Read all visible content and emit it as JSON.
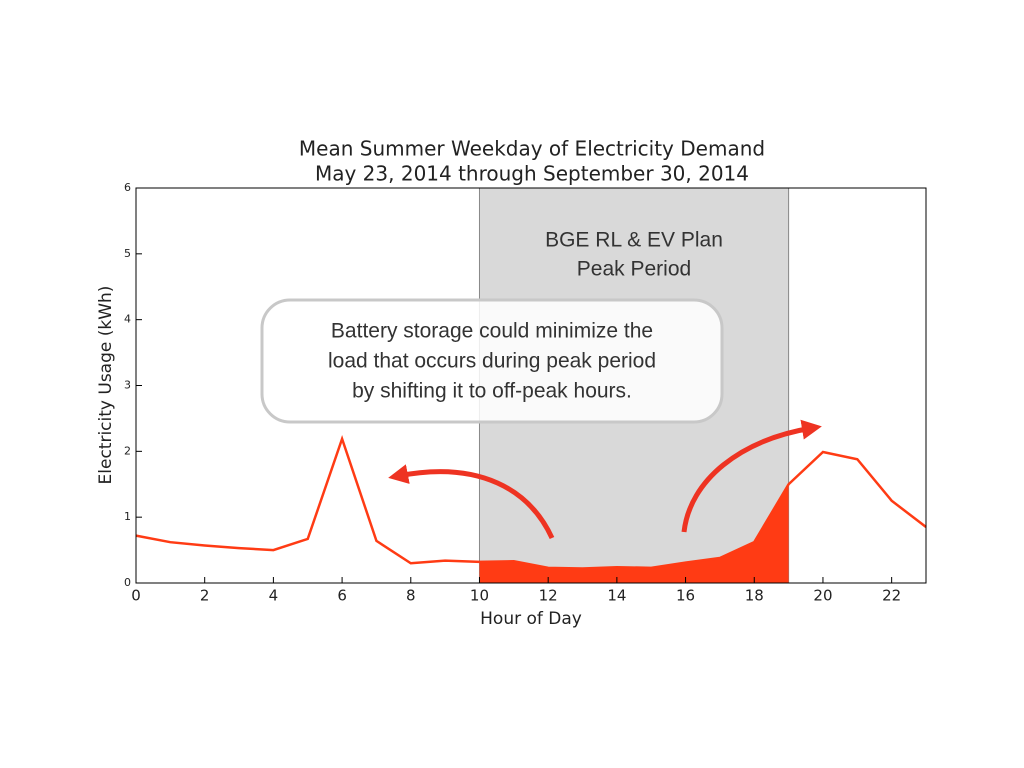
{
  "chart_data": {
    "type": "line",
    "title": [
      "Mean Summer Weekday of Electricity Demand",
      "May 23, 2014 through September 30, 2014"
    ],
    "x_label": "Hour of Day",
    "y_label": "Electricity Usage (kWh)",
    "x": [
      0,
      1,
      2,
      3,
      4,
      5,
      6,
      7,
      8,
      9,
      10,
      11,
      12,
      13,
      14,
      15,
      16,
      17,
      18,
      19,
      20,
      21,
      22,
      23
    ],
    "values": [
      0.72,
      0.62,
      0.57,
      0.53,
      0.5,
      0.67,
      2.19,
      0.64,
      0.3,
      0.34,
      0.32,
      0.33,
      0.23,
      0.22,
      0.24,
      0.23,
      0.31,
      0.38,
      0.62,
      1.5,
      1.99,
      1.88,
      1.25,
      0.85
    ],
    "color": "#ff3b14",
    "xlim": [
      0,
      23
    ],
    "xticks": [
      0,
      2,
      4,
      6,
      8,
      10,
      12,
      14,
      16,
      18,
      20,
      22
    ],
    "ylim": [
      0,
      6
    ],
    "yticks": [
      0,
      1,
      2,
      3,
      4,
      5,
      6
    ],
    "peak_period": [
      10,
      19
    ],
    "peak_color": "#d9d9d9",
    "peak_label": [
      "BGE RL & EV Plan",
      "Peak Period"
    ],
    "callout": [
      "Battery storage could minimize the",
      "load that occurs during peak period",
      "by shifting it to off-peak hours."
    ]
  }
}
